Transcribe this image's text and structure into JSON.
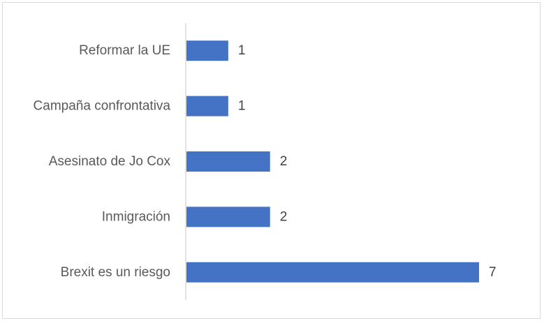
{
  "chart_data": {
    "type": "bar",
    "orientation": "horizontal",
    "categories": [
      "Reformar la UE",
      "Campaña confrontativa",
      "Asesinato de Jo Cox",
      "Inmigración",
      "Brexit es un riesgo"
    ],
    "values": [
      1,
      1,
      2,
      2,
      7
    ],
    "data_labels": [
      "1",
      "1",
      "2",
      "2",
      "7"
    ],
    "title": "",
    "xlabel": "",
    "ylabel": "",
    "xlim": [
      0,
      7
    ],
    "grid": false,
    "legend": "none",
    "bar_color": "#4472c4",
    "axis_color": "#d9d9d9"
  }
}
